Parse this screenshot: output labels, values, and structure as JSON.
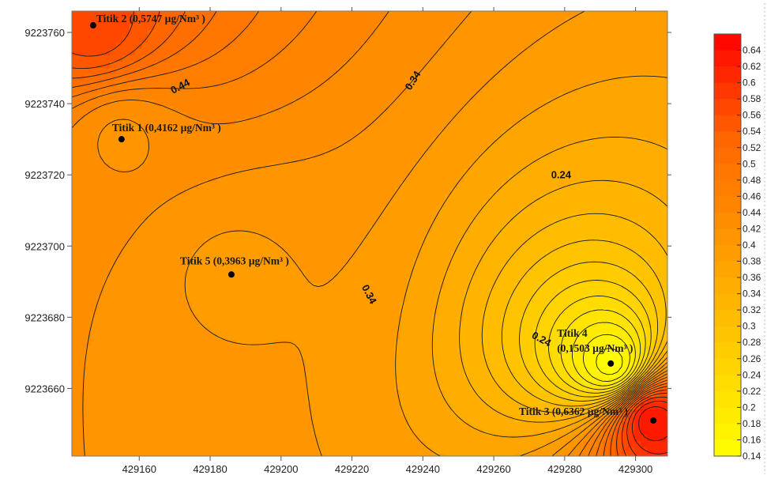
{
  "chart_data": {
    "type": "heatmap",
    "subtype": "filled-contour",
    "title": "",
    "xlabel": "",
    "ylabel": "",
    "unit": "µg/Nm³",
    "xlim": [
      429141,
      429309
    ],
    "ylim": [
      9223641,
      9223766
    ],
    "x_ticks": [
      429160,
      429180,
      429200,
      429220,
      429240,
      429260,
      429280,
      429300
    ],
    "y_ticks": [
      9223660,
      9223680,
      9223700,
      9223720,
      9223740,
      9223760
    ],
    "x_tick_labels": [
      "429160",
      "429180",
      "429200",
      "429220",
      "429240",
      "429260",
      "429280",
      "429300"
    ],
    "y_tick_labels": [
      "9223660",
      "9223680",
      "9223700",
      "9223720",
      "9223740",
      "9223760"
    ],
    "points": [
      {
        "label": "Titik 1 (0,4162 µg/Nm³ )",
        "x": 429155,
        "y": 9223730,
        "value": 0.4162
      },
      {
        "label": "Titik 2 (0,5747 µg/Nm³ )",
        "x": 429147,
        "y": 9223762,
        "value": 0.5747
      },
      {
        "label": "Titik 3 (0,6362 µg/Nm³ )",
        "x": 429305,
        "y": 9223651,
        "value": 0.6362
      },
      {
        "label_lines": [
          "Titik 4",
          "(0,1503 µg/Nm³ )"
        ],
        "x": 429293,
        "y": 9223667,
        "value": 0.1503
      },
      {
        "label": "Titik 5 (0,3963 µg/Nm³ )",
        "x": 429186,
        "y": 9223692,
        "value": 0.3963
      }
    ],
    "contour_labels": [
      {
        "text": "0.44",
        "x": 429172,
        "y": 9223744
      },
      {
        "text": "0.34",
        "x": 429238,
        "y": 9223746
      },
      {
        "text": "0.34",
        "x": 429224,
        "y": 9223686
      },
      {
        "text": "0.24",
        "x": 429279,
        "y": 9223719
      },
      {
        "text": "0.24",
        "x": 429273,
        "y": 9223673
      }
    ],
    "colorbar": {
      "min": 0.14,
      "max": 0.66,
      "step": 0.02,
      "labels": [
        "0.64",
        "0.62",
        "0.6",
        "0.58",
        "0.56",
        "0.54",
        "0.52",
        "0.5",
        "0.48",
        "0.46",
        "0.44",
        "0.42",
        "0.4",
        "0.38",
        "0.36",
        "0.34",
        "0.32",
        "0.3",
        "0.28",
        "0.26",
        "0.24",
        "0.22",
        "0.2",
        "0.18",
        "0.16",
        "0.14"
      ],
      "colors": [
        "#ffff00",
        "#ffcc00",
        "#ff9900",
        "#ff6600",
        "#ff0000"
      ]
    }
  }
}
